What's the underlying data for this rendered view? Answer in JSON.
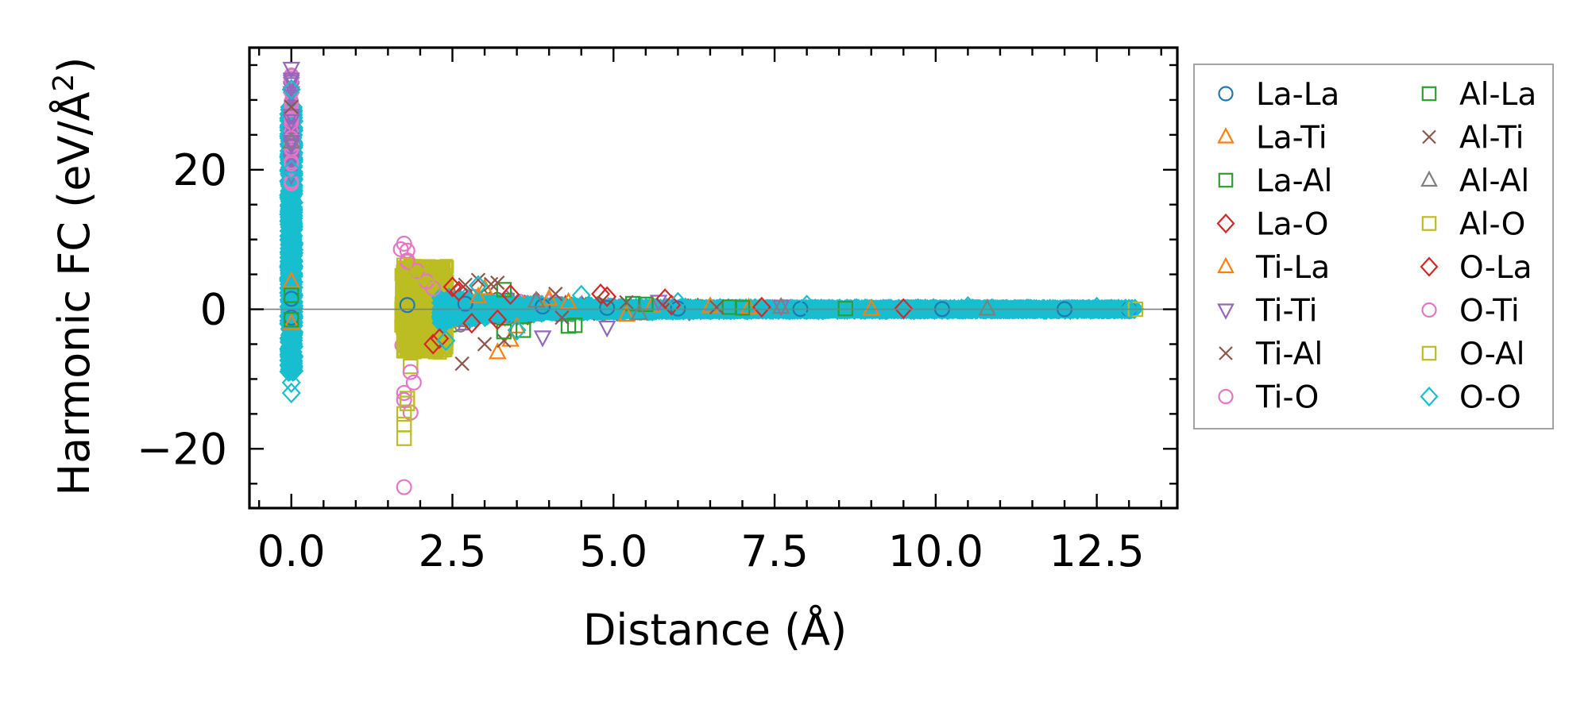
{
  "chart_data": {
    "type": "scatter",
    "title": "",
    "xlabel": "Distance (Å)",
    "ylabel_main": "Harmonic FC (eV/Å",
    "ylabel_sup": "2",
    "ylabel_close": ")",
    "xlim": [
      -0.65,
      13.75
    ],
    "ylim": [
      -28.5,
      37.5
    ],
    "xticks": [
      0.0,
      2.5,
      5.0,
      7.5,
      10.0,
      12.5
    ],
    "xtick_labels": [
      "0.0",
      "2.5",
      "5.0",
      "7.5",
      "10.0",
      "12.5"
    ],
    "yticks": [
      -20,
      0,
      20
    ],
    "ytick_labels": [
      "−20",
      "0",
      "20"
    ],
    "zero_line": true,
    "legend_position": "outside-right",
    "series": [
      {
        "name": "La-La",
        "marker": "circle",
        "color": "#1f77b4",
        "x": [
          0.0,
          0.0,
          1.8,
          2.7,
          3.9,
          4.9,
          6.0,
          7.9,
          10.1,
          12.0,
          13.0
        ],
        "y": [
          1.5,
          -1.2,
          0.6,
          0.8,
          0.4,
          0.2,
          0.1,
          0.05,
          0.02,
          0.01,
          0.0
        ]
      },
      {
        "name": "La-Ti",
        "marker": "triangle-up",
        "color": "#ff7f0e",
        "x": [
          0.0,
          2.9,
          3.2,
          3.5,
          4.3,
          5.6,
          7.1,
          9.0
        ],
        "y": [
          4.0,
          1.8,
          -6.2,
          -2.5,
          1.0,
          0.5,
          0.2,
          0.05
        ]
      },
      {
        "name": "La-Al",
        "marker": "square",
        "color": "#2ca02c",
        "x": [
          0.0,
          3.3,
          3.6,
          4.4,
          5.3,
          6.8,
          8.6
        ],
        "y": [
          2.0,
          2.8,
          -3.0,
          -2.3,
          0.8,
          0.3,
          0.1
        ]
      },
      {
        "name": "La-O",
        "marker": "diamond",
        "color": "#d62728",
        "x": [
          2.2,
          2.5,
          2.8,
          3.4,
          4.9,
          5.9,
          7.3,
          9.5
        ],
        "y": [
          -5.0,
          3.2,
          -2.0,
          2.1,
          1.8,
          0.6,
          0.3,
          0.1
        ]
      },
      {
        "name": "Ti-La",
        "marker": "triangle-up",
        "color": "#ff7f0e",
        "x": [
          0.0,
          3.0,
          3.4,
          4.0,
          5.2,
          6.5
        ],
        "y": [
          -2.0,
          3.0,
          -4.4,
          1.5,
          -0.8,
          0.4
        ]
      },
      {
        "name": "Ti-Ti",
        "marker": "triangle-down",
        "color": "#9467bd",
        "x": [
          0.0,
          0.0,
          0.0,
          0.0,
          3.9,
          4.9,
          5.7,
          7.6
        ],
        "y": [
          34.5,
          31.0,
          27.0,
          24.0,
          -4.0,
          -2.6,
          1.1,
          0.4
        ]
      },
      {
        "name": "Ti-Al",
        "marker": "x",
        "color": "#8c564b",
        "x": [
          2.65,
          2.9,
          3.1,
          3.3,
          4.1,
          5.2,
          6.6
        ],
        "y": [
          -7.8,
          4.2,
          3.6,
          -4.5,
          2.2,
          1.0,
          0.3
        ]
      },
      {
        "name": "Ti-O",
        "marker": "circle",
        "color": "#e377c2",
        "x": [
          1.75,
          1.75,
          1.8,
          1.85,
          1.75,
          1.8,
          1.9,
          1.95,
          2.2
        ],
        "y": [
          -25.5,
          9.4,
          8.4,
          -14.8,
          -12.0,
          7.0,
          -10.5,
          5.5,
          3.0
        ]
      },
      {
        "name": "Al-La",
        "marker": "square",
        "color": "#2ca02c",
        "x": [
          0.0,
          3.3,
          4.3,
          5.5,
          7.0
        ],
        "y": [
          -1.5,
          -3.2,
          -2.4,
          0.7,
          0.2
        ]
      },
      {
        "name": "Al-Ti",
        "marker": "x",
        "color": "#8c564b",
        "x": [
          0.0,
          2.7,
          3.0,
          3.2,
          4.2
        ],
        "y": [
          29.0,
          3.5,
          -5.0,
          3.8,
          -1.2
        ]
      },
      {
        "name": "Al-Al",
        "marker": "triangle-up",
        "color": "#7f7f7f",
        "x": [
          0.0,
          3.8,
          5.4,
          7.6,
          10.8
        ],
        "y": [
          24.0,
          1.2,
          -0.6,
          0.3,
          0.05
        ]
      },
      {
        "name": "Al-O",
        "marker": "square",
        "color": "#bcbd22",
        "x": [
          1.75,
          1.75,
          1.8,
          1.75,
          1.85,
          1.9,
          2.0,
          13.1
        ],
        "y": [
          -18.5,
          -15.0,
          -12.8,
          6.3,
          -8.2,
          5.0,
          4.5,
          0.0
        ]
      },
      {
        "name": "O-La",
        "marker": "diamond",
        "color": "#d62728",
        "x": [
          2.3,
          2.6,
          3.2,
          4.8,
          5.8
        ],
        "y": [
          -4.2,
          2.6,
          -1.5,
          2.2,
          1.5
        ]
      },
      {
        "name": "O-Ti",
        "marker": "circle",
        "color": "#e377c2",
        "x": [
          1.7,
          1.75,
          1.8,
          1.85,
          2.1
        ],
        "y": [
          8.6,
          -13.0,
          6.8,
          -9.0,
          4.0
        ]
      },
      {
        "name": "O-Al",
        "marker": "square",
        "color": "#bcbd22",
        "x": [
          1.75,
          1.8,
          1.75,
          1.9,
          2.1
        ],
        "y": [
          -16.5,
          -13.5,
          5.8,
          -6.0,
          4.8
        ]
      },
      {
        "name": "O-O",
        "marker": "diamond",
        "color": "#17becf",
        "x": [
          0.0,
          0.0,
          0.0,
          0.0,
          2.4,
          2.9,
          3.5,
          4.5,
          6.0,
          8.0,
          10.5,
          12.5,
          13.0
        ],
        "y": [
          31.5,
          -12.0,
          -10.5,
          20.0,
          -4.5,
          3.4,
          -3.0,
          2.0,
          1.0,
          0.6,
          0.4,
          0.3,
          0.0
        ]
      }
    ]
  }
}
